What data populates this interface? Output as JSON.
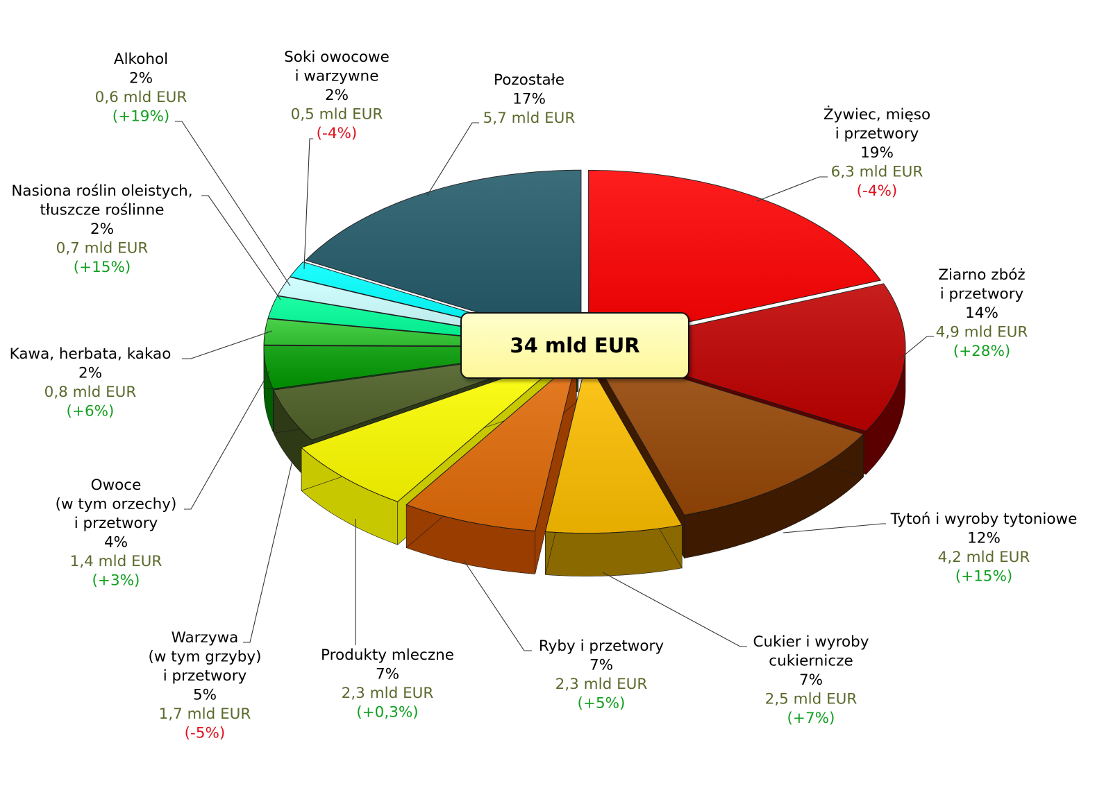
{
  "chart_data": {
    "type": "pie",
    "center_label": "34 mld EUR",
    "slices": [
      {
        "name_lines": [
          "Żywiec, mięso",
          "i przetwory"
        ],
        "percent": "19%",
        "value": "6,3 mld EUR",
        "change": "(-4%)",
        "color": "#ff0000",
        "side_color": "#8b0000",
        "share": 19,
        "exploded": false
      },
      {
        "name_lines": [
          "Ziarno zbóż",
          "i przetwory"
        ],
        "percent": "14%",
        "value": "4,9 mld EUR",
        "change": "(+28%)",
        "color": "#c00000",
        "side_color": "#5a0000",
        "share": 14,
        "exploded": false
      },
      {
        "name_lines": [
          "Tytoń i wyroby tytoniowe"
        ],
        "percent": "12%",
        "value": "4,2 mld EUR",
        "change": "(+15%)",
        "color": "#974706",
        "side_color": "#3d1a00",
        "share": 12,
        "exploded": false
      },
      {
        "name_lines": [
          "Cukier i wyroby",
          "cukiernicze"
        ],
        "percent": "7%",
        "value": "2,5 mld EUR",
        "change": "(+7%)",
        "color": "#ffc000",
        "side_color": "#8a6a00",
        "share": 7,
        "exploded": true
      },
      {
        "name_lines": [
          "Ryby i przetwory"
        ],
        "percent": "7%",
        "value": "2,3 mld EUR",
        "change": "(+5%)",
        "color": "#e36c09",
        "side_color": "#9a3d00",
        "share": 7,
        "exploded": true
      },
      {
        "name_lines": [
          "Produkty mleczne"
        ],
        "percent": "7%",
        "value": "2,3 mld EUR",
        "change": "(+0,3%)",
        "color": "#ffff00",
        "side_color": "#c8c800",
        "share": 7,
        "exploded": true
      },
      {
        "name_lines": [
          "Warzywa",
          "(w tym grzyby)",
          "i przetwory"
        ],
        "percent": "5%",
        "value": "1,7 mld EUR",
        "change": "(-5%)",
        "color": "#4f6228",
        "side_color": "#2e3a16",
        "share": 5,
        "exploded": false
      },
      {
        "name_lines": [
          "Owoce",
          "(w tym orzechy)",
          "i przetwory"
        ],
        "percent": "4%",
        "value": "1,4 mld EUR",
        "change": "(+3%)",
        "color": "#009900",
        "side_color": "#006000",
        "share": 4,
        "exploded": false
      },
      {
        "name_lines": [
          "Kawa, herbata, kakao"
        ],
        "percent": "2%",
        "value": "0,8 mld EUR",
        "change": "(+6%)",
        "color": "#33cc33",
        "side_color": "#1e8a1e",
        "share": 2.4,
        "exploded": false
      },
      {
        "name_lines": [
          "Nasiona roślin oleistych,",
          "tłuszcze roślinne"
        ],
        "percent": "2%",
        "value": "0,7 mld EUR",
        "change": "(+15%)",
        "color": "#00ff99",
        "side_color": "#00a060",
        "share": 2.1,
        "exploded": false
      },
      {
        "name_lines": [
          "Alkohol"
        ],
        "percent": "2%",
        "value": "0,6 mld EUR",
        "change": "(+19%)",
        "color": "#ccffff",
        "side_color": "#8acccc",
        "share": 1.8,
        "exploded": false
      },
      {
        "name_lines": [
          "Soki owocowe",
          "i warzywne"
        ],
        "percent": "2%",
        "value": "0,5 mld EUR",
        "change": "(-4%)",
        "color": "#00ffff",
        "side_color": "#00a0a0",
        "share": 1.5,
        "exploded": false
      },
      {
        "name_lines": [
          "Pozostałe"
        ],
        "percent": "17%",
        "value": "5,7 mld EUR",
        "change": "",
        "color": "#215968",
        "side_color": "#0f2f38",
        "share": 17,
        "exploded": false
      }
    ]
  }
}
